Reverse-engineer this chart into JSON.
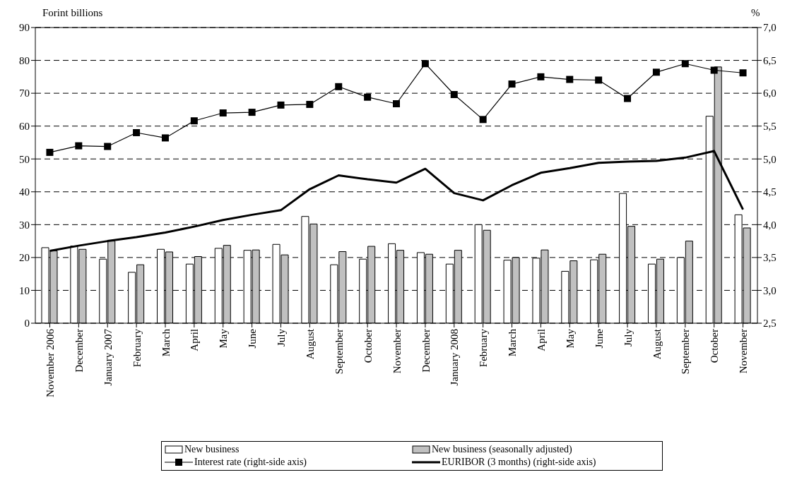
{
  "chart_data": {
    "type": "bar",
    "ylabel": "Forint billions",
    "y2label": "%",
    "categories": [
      "November 2006",
      "December",
      "January 2007",
      "February",
      "March",
      "April",
      "May",
      "June",
      "July",
      "August",
      "September",
      "October",
      "November",
      "December",
      "January 2008",
      "February",
      "March",
      "April",
      "May",
      "June",
      "July",
      "August",
      "September",
      "October",
      "November"
    ],
    "series": [
      {
        "name": "New business",
        "color": "#ffffff",
        "values": [
          23,
          23.5,
          19.5,
          15.5,
          22.5,
          18,
          22.8,
          22.2,
          24,
          32.5,
          17.8,
          19.5,
          24.2,
          21.5,
          18,
          30,
          19.2,
          19.8,
          15.8,
          19.3,
          39.5,
          18,
          20,
          63,
          33
        ]
      },
      {
        "name": "New business (seasonally adjusted)",
        "color": "#c0c0c0",
        "values": [
          22,
          22.5,
          25,
          17.8,
          21.7,
          20.3,
          23.7,
          22.3,
          20.8,
          30.2,
          21.8,
          23.4,
          22.2,
          21,
          22.2,
          28.3,
          20,
          22.3,
          19,
          21,
          29.5,
          19.5,
          25,
          78,
          29
        ]
      },
      {
        "name": "Interest rate (right-side axis)",
        "type": "line",
        "axis": "y2",
        "color": "#000000",
        "marker": "square",
        "values": [
          5.1,
          5.2,
          5.19,
          5.4,
          5.32,
          5.58,
          5.7,
          5.71,
          5.82,
          5.83,
          6.1,
          5.94,
          5.84,
          6.45,
          5.98,
          5.6,
          6.14,
          6.25,
          6.21,
          6.2,
          5.92,
          6.32,
          6.45,
          6.35,
          6.31
        ]
      },
      {
        "name": "EURIBOR (3 months) (right-side axis)",
        "type": "line",
        "axis": "y2",
        "color": "#000000",
        "marker": "none",
        "values": [
          3.6,
          3.68,
          3.75,
          3.81,
          3.88,
          3.97,
          4.07,
          4.15,
          4.22,
          4.54,
          4.75,
          4.69,
          4.64,
          4.85,
          4.48,
          4.37,
          4.6,
          4.79,
          4.86,
          4.94,
          4.96,
          4.97,
          5.02,
          5.12,
          4.23
        ]
      }
    ],
    "ylim": [
      0,
      90
    ],
    "yticks": [
      0,
      10,
      20,
      30,
      40,
      50,
      60,
      70,
      80,
      90
    ],
    "y2lim": [
      2.5,
      7
    ],
    "y2ticks": [
      {
        "value": 2.5,
        "label": "2,5"
      },
      {
        "value": 3,
        "label": "3,0"
      },
      {
        "value": 3.5,
        "label": "3,5"
      },
      {
        "value": 4,
        "label": "4,0"
      },
      {
        "value": 4.5,
        "label": "4,5"
      },
      {
        "value": 5,
        "label": "5,0"
      },
      {
        "value": 5.5,
        "label": "5,5"
      },
      {
        "value": 6,
        "label": "6,0"
      },
      {
        "value": 6.5,
        "label": "6,5"
      },
      {
        "value": 7,
        "label": "7,0"
      }
    ],
    "grid": "y",
    "legend": "bottom"
  }
}
